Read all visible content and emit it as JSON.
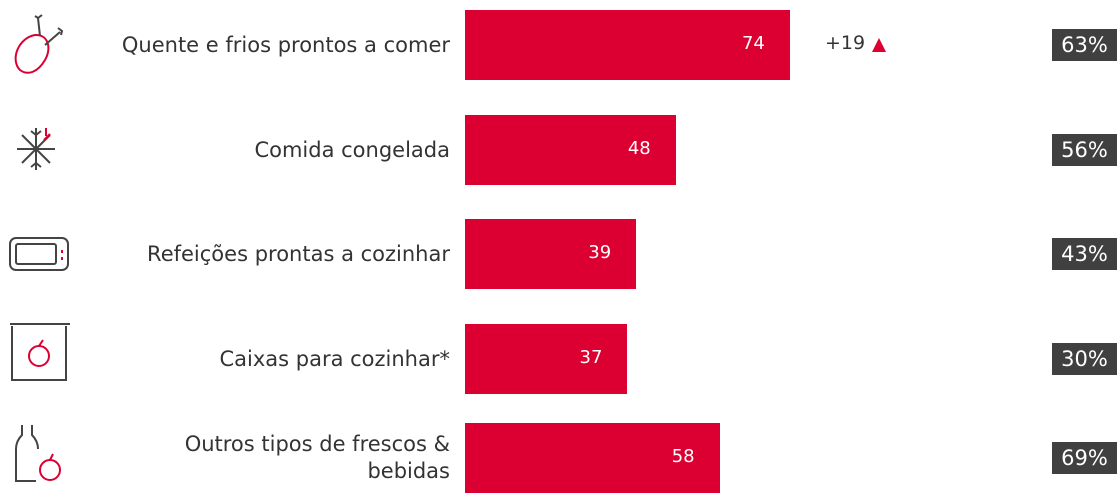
{
  "chart_data": {
    "type": "bar",
    "categories": [
      "Quente e frios prontos a comer",
      "Comida congelada",
      "Refeições prontas a cozinhar",
      "Caixas para cozinhar*",
      "Outros tipos de frescos & bebidas"
    ],
    "values": [
      74,
      48,
      39,
      37,
      58
    ],
    "color": "#dc0032",
    "change_labels": [
      "+19",
      null,
      null,
      null,
      null
    ],
    "percent_labels": [
      "63%",
      "56%",
      "43%",
      "30%",
      "69%"
    ]
  }
}
